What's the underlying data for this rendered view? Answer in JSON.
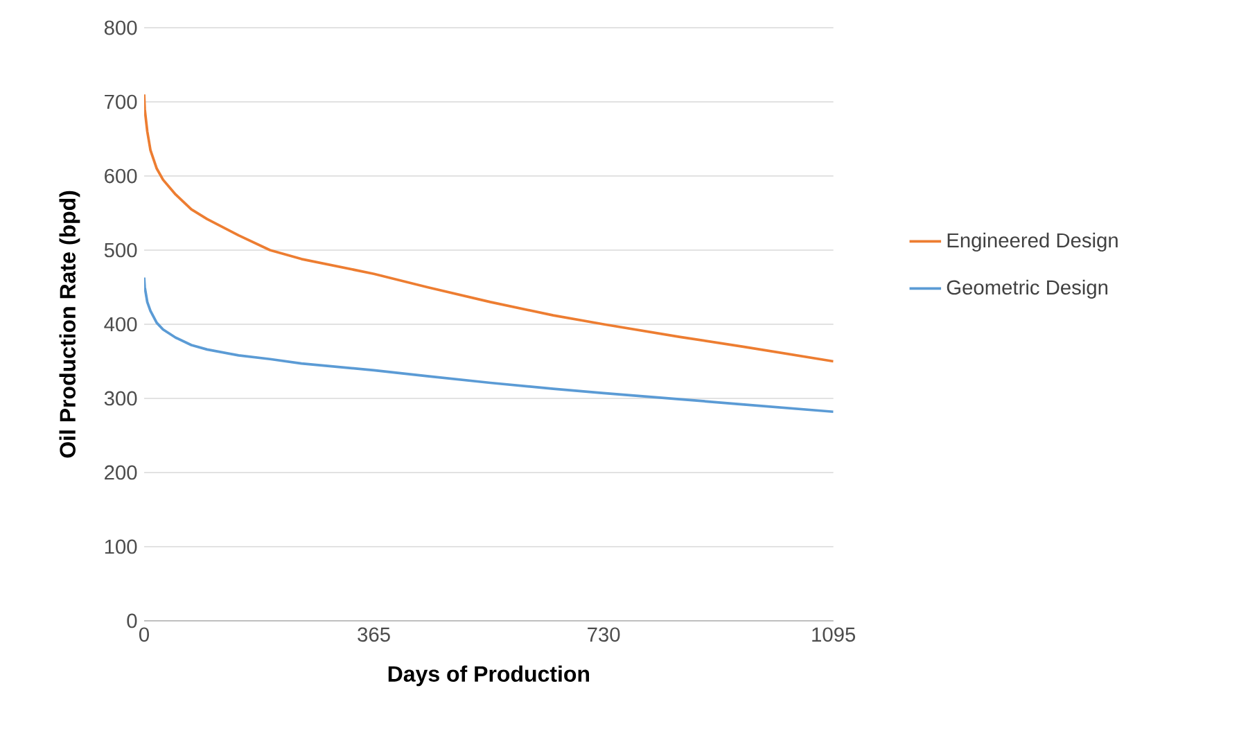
{
  "chart_data": {
    "type": "line",
    "xlabel": "**Days of Production**",
    "ylabel": "**Oil Production Rate (bpd)**",
    "x": [
      0,
      1,
      5,
      10,
      20,
      30,
      50,
      75,
      100,
      150,
      200,
      250,
      365,
      450,
      550,
      650,
      730,
      850,
      950,
      1095
    ],
    "series": [
      {
        "name": "Engineered Design",
        "color": "#ed7d31",
        "values": [
          710,
          690,
          660,
          635,
          610,
          595,
          575,
          555,
          542,
          520,
          500,
          488,
          468,
          450,
          430,
          412,
          400,
          383,
          370,
          350
        ]
      },
      {
        "name": "Geometric Design",
        "color": "#5b9bd5",
        "values": [
          463,
          450,
          430,
          418,
          402,
          393,
          382,
          372,
          366,
          358,
          353,
          347,
          338,
          330,
          321,
          313,
          307,
          299,
          292,
          282
        ]
      }
    ],
    "xlim": [
      0,
      1095
    ],
    "xticks": [
      0,
      365,
      730,
      1095
    ],
    "ylim": [
      0,
      800
    ],
    "yticks": [
      0,
      100,
      200,
      300,
      400,
      500,
      600,
      700,
      800
    ],
    "grid": "y",
    "legend": "right",
    "marker": "none",
    "line_style": "solid"
  }
}
